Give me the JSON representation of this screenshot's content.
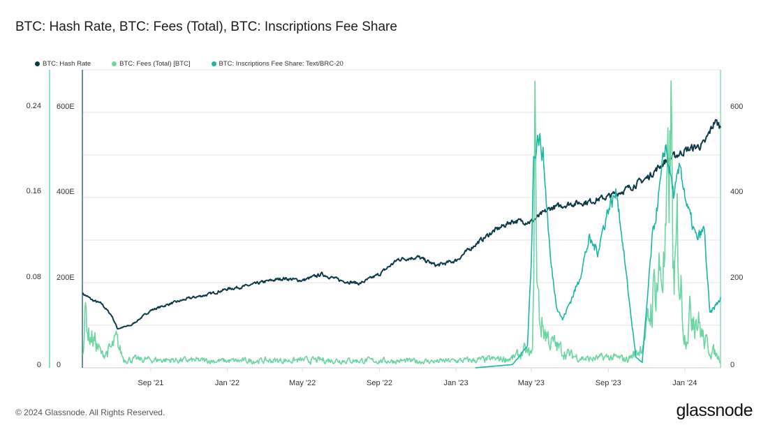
{
  "title": "BTC: Hash Rate, BTC: Fees (Total), BTC: Inscriptions Fee Share",
  "footer": "© 2024 Glassnode. All Rights Reserved.",
  "logo": "glassnode",
  "chart_data": {
    "type": "line",
    "title": "BTC: Hash Rate, BTC: Fees (Total), BTC: Inscriptions Fee Share",
    "x_range": [
      "2021-05-15",
      "2024-02-27"
    ],
    "x_ticks": [
      {
        "label": "Sep '21",
        "date": "2021-09-01"
      },
      {
        "label": "Jan '22",
        "date": "2022-01-01"
      },
      {
        "label": "May '22",
        "date": "2022-05-01"
      },
      {
        "label": "Sep '22",
        "date": "2022-09-01"
      },
      {
        "label": "Jan '23",
        "date": "2023-01-01"
      },
      {
        "label": "May '23",
        "date": "2023-05-01"
      },
      {
        "label": "Sep '23",
        "date": "2023-09-01"
      },
      {
        "label": "Jan '24",
        "date": "2024-01-01"
      }
    ],
    "axes": {
      "share": {
        "ticks": [
          "0",
          "0.08",
          "0.16",
          "0.24"
        ],
        "range": [
          0,
          0.24
        ],
        "color": "#8fe0d0"
      },
      "hash": {
        "ticks": [
          "0",
          "200E",
          "400E",
          "600E"
        ],
        "range": [
          0,
          600
        ],
        "color": "#1c5366"
      },
      "fees": {
        "ticks": [
          "0",
          "200",
          "400",
          "600"
        ],
        "range": [
          0,
          600
        ],
        "color": "#7ad9ad"
      }
    },
    "grid": true,
    "legend_position": "top-left",
    "series": [
      {
        "name": "BTC: Hash Rate",
        "axis": "hash",
        "color": "#0e3a48",
        "noise": 0.015,
        "points": [
          [
            "2021-05-15",
            175
          ],
          [
            "2021-06-01",
            158
          ],
          [
            "2021-06-15",
            150
          ],
          [
            "2021-07-01",
            122
          ],
          [
            "2021-07-10",
            92
          ],
          [
            "2021-08-01",
            100
          ],
          [
            "2021-09-01",
            135
          ],
          [
            "2021-10-01",
            150
          ],
          [
            "2021-11-01",
            163
          ],
          [
            "2021-12-01",
            172
          ],
          [
            "2022-01-01",
            185
          ],
          [
            "2022-02-01",
            192
          ],
          [
            "2022-03-01",
            202
          ],
          [
            "2022-04-01",
            210
          ],
          [
            "2022-05-01",
            205
          ],
          [
            "2022-06-01",
            220
          ],
          [
            "2022-07-01",
            205
          ],
          [
            "2022-08-01",
            198
          ],
          [
            "2022-09-01",
            220
          ],
          [
            "2022-10-01",
            255
          ],
          [
            "2022-11-01",
            260
          ],
          [
            "2022-12-01",
            240
          ],
          [
            "2023-01-01",
            252
          ],
          [
            "2023-02-01",
            290
          ],
          [
            "2023-03-01",
            320
          ],
          [
            "2023-04-01",
            345
          ],
          [
            "2023-05-01",
            343
          ],
          [
            "2023-06-01",
            375
          ],
          [
            "2023-07-01",
            385
          ],
          [
            "2023-08-01",
            390
          ],
          [
            "2023-09-01",
            402
          ],
          [
            "2023-10-01",
            420
          ],
          [
            "2023-11-01",
            445
          ],
          [
            "2023-12-01",
            485
          ],
          [
            "2024-01-01",
            510
          ],
          [
            "2024-02-01",
            525
          ],
          [
            "2024-02-18",
            580
          ],
          [
            "2024-02-27",
            565
          ]
        ]
      },
      {
        "name": "BTC: Fees (Total) [BTC]",
        "axis": "fees",
        "color": "#6bd6a2",
        "noise": 0.35,
        "points": [
          [
            "2021-05-15",
            40
          ],
          [
            "2021-05-20",
            130
          ],
          [
            "2021-05-25",
            80
          ],
          [
            "2021-06-05",
            60
          ],
          [
            "2021-06-15",
            30
          ],
          [
            "2021-07-01",
            45
          ],
          [
            "2021-07-08",
            62
          ],
          [
            "2021-07-20",
            20
          ],
          [
            "2022-01-01",
            16
          ],
          [
            "2022-06-01",
            18
          ],
          [
            "2022-12-01",
            15
          ],
          [
            "2023-02-01",
            18
          ],
          [
            "2023-04-01",
            22
          ],
          [
            "2023-04-20",
            38
          ],
          [
            "2023-05-03",
            30
          ],
          [
            "2023-05-08",
            630
          ],
          [
            "2023-05-10",
            200
          ],
          [
            "2023-05-15",
            110
          ],
          [
            "2023-06-01",
            60
          ],
          [
            "2023-07-01",
            30
          ],
          [
            "2023-08-01",
            20
          ],
          [
            "2023-09-01",
            25
          ],
          [
            "2023-10-01",
            20
          ],
          [
            "2023-10-20",
            40
          ],
          [
            "2023-11-01",
            80
          ],
          [
            "2023-11-15",
            200
          ],
          [
            "2023-12-01",
            250
          ],
          [
            "2023-12-10",
            550
          ],
          [
            "2023-12-15",
            150
          ],
          [
            "2023-12-20",
            300
          ],
          [
            "2024-01-01",
            80
          ],
          [
            "2024-01-15",
            150
          ],
          [
            "2024-02-01",
            60
          ],
          [
            "2024-02-27",
            20
          ]
        ]
      },
      {
        "name": "BTC: Inscriptions Fee Share: Text/BRC-20",
        "axis": "share",
        "color": "#19b7a3",
        "noise": 0.04,
        "points": [
          [
            "2023-02-01",
            0
          ],
          [
            "2023-04-01",
            0.003
          ],
          [
            "2023-04-25",
            0.02
          ],
          [
            "2023-05-01",
            0.1
          ],
          [
            "2023-05-05",
            0.2
          ],
          [
            "2023-05-12",
            0.22
          ],
          [
            "2023-05-20",
            0.2
          ],
          [
            "2023-06-01",
            0.1
          ],
          [
            "2023-06-10",
            0.06
          ],
          [
            "2023-06-20",
            0.045
          ],
          [
            "2023-07-15",
            0.08
          ],
          [
            "2023-08-01",
            0.12
          ],
          [
            "2023-08-15",
            0.11
          ],
          [
            "2023-09-01",
            0.15
          ],
          [
            "2023-09-15",
            0.165
          ],
          [
            "2023-10-01",
            0.08
          ],
          [
            "2023-10-15",
            0.01
          ],
          [
            "2023-10-25",
            0.005
          ],
          [
            "2023-11-10",
            0.12
          ],
          [
            "2023-11-25",
            0.18
          ],
          [
            "2023-12-01",
            0.21
          ],
          [
            "2023-12-15",
            0.16
          ],
          [
            "2023-12-25",
            0.19
          ],
          [
            "2024-01-05",
            0.15
          ],
          [
            "2024-01-20",
            0.12
          ],
          [
            "2024-02-01",
            0.13
          ],
          [
            "2024-02-10",
            0.05
          ],
          [
            "2024-02-27",
            0.065
          ]
        ]
      }
    ]
  }
}
